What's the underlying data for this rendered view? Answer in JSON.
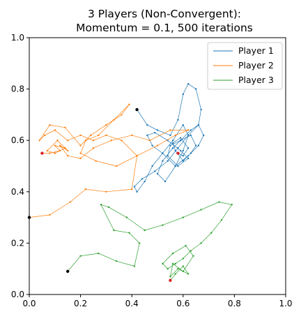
{
  "chart_data": {
    "type": "line",
    "title_line1": "3 Players (Non-Convergent):",
    "title_line2": "Momentum = 0.1, 500 iterations",
    "xlabel": "",
    "ylabel": "",
    "xlim": [
      0,
      1
    ],
    "ylim": [
      0,
      1
    ],
    "x_ticks": [
      "0.0",
      "0.2",
      "0.4",
      "0.6",
      "0.8",
      "1.0"
    ],
    "y_ticks": [
      "0.0",
      "0.2",
      "0.4",
      "0.6",
      "0.8",
      "1.0"
    ],
    "grid": false,
    "legend_position": "upper right",
    "series": [
      {
        "name": "Player 1",
        "color": "#1f77b4",
        "start": [
          0.42,
          0.72
        ],
        "end": [
          0.58,
          0.55
        ],
        "x": [
          0.42,
          0.46,
          0.5,
          0.55,
          0.58,
          0.6,
          0.62,
          0.65,
          0.67,
          0.66,
          0.63,
          0.59,
          0.56,
          0.52,
          0.5,
          0.53,
          0.57,
          0.6,
          0.62,
          0.6,
          0.56,
          0.52,
          0.48,
          0.45,
          0.42,
          0.41,
          0.44,
          0.49,
          0.54,
          0.58,
          0.62,
          0.66,
          0.68,
          0.66,
          0.62,
          0.57,
          0.52,
          0.48,
          0.46,
          0.49,
          0.54,
          0.59,
          0.62,
          0.58,
          0.54,
          0.55,
          0.59,
          0.63,
          0.65,
          0.63,
          0.6,
          0.57,
          0.56,
          0.59,
          0.62,
          0.6,
          0.58
        ],
        "y": [
          0.72,
          0.66,
          0.64,
          0.62,
          0.68,
          0.78,
          0.82,
          0.8,
          0.72,
          0.66,
          0.64,
          0.6,
          0.57,
          0.52,
          0.47,
          0.44,
          0.5,
          0.56,
          0.62,
          0.66,
          0.6,
          0.55,
          0.5,
          0.44,
          0.4,
          0.42,
          0.45,
          0.48,
          0.52,
          0.57,
          0.62,
          0.66,
          0.62,
          0.58,
          0.54,
          0.5,
          0.55,
          0.58,
          0.62,
          0.63,
          0.6,
          0.56,
          0.53,
          0.5,
          0.54,
          0.58,
          0.6,
          0.62,
          0.58,
          0.55,
          0.52,
          0.56,
          0.59,
          0.61,
          0.57,
          0.54,
          0.55
        ]
      },
      {
        "name": "Player 2",
        "color": "#ff7f0e",
        "start": [
          0.0,
          0.3
        ],
        "end": [
          0.05,
          0.55
        ],
        "x": [
          0.0,
          0.08,
          0.16,
          0.22,
          0.3,
          0.4,
          0.42,
          0.36,
          0.3,
          0.25,
          0.2,
          0.15,
          0.1,
          0.06,
          0.04,
          0.08,
          0.14,
          0.2,
          0.24,
          0.3,
          0.36,
          0.39,
          0.33,
          0.27,
          0.22,
          0.2,
          0.26,
          0.34,
          0.42,
          0.5,
          0.57,
          0.62,
          0.55,
          0.47,
          0.4,
          0.32,
          0.25,
          0.2,
          0.15,
          0.12,
          0.15,
          0.11,
          0.07,
          0.1,
          0.14,
          0.1,
          0.12,
          0.08,
          0.05
        ],
        "y": [
          0.3,
          0.31,
          0.36,
          0.41,
          0.4,
          0.41,
          0.54,
          0.6,
          0.62,
          0.6,
          0.62,
          0.6,
          0.64,
          0.62,
          0.6,
          0.66,
          0.65,
          0.58,
          0.62,
          0.66,
          0.7,
          0.74,
          0.68,
          0.62,
          0.6,
          0.55,
          0.52,
          0.5,
          0.54,
          0.58,
          0.62,
          0.64,
          0.64,
          0.6,
          0.62,
          0.6,
          0.57,
          0.53,
          0.54,
          0.58,
          0.56,
          0.6,
          0.56,
          0.55,
          0.57,
          0.58,
          0.56,
          0.55,
          0.55
        ]
      },
      {
        "name": "Player 3",
        "color": "#2ca02c",
        "start": [
          0.15,
          0.09
        ],
        "end": [
          0.55,
          0.055
        ],
        "x": [
          0.15,
          0.2,
          0.27,
          0.34,
          0.41,
          0.43,
          0.39,
          0.33,
          0.28,
          0.31,
          0.38,
          0.45,
          0.52,
          0.6,
          0.67,
          0.74,
          0.79,
          0.75,
          0.71,
          0.67,
          0.63,
          0.6,
          0.57,
          0.54,
          0.52,
          0.56,
          0.61,
          0.64,
          0.6,
          0.56,
          0.55,
          0.58,
          0.62,
          0.6,
          0.57,
          0.55
        ],
        "y": [
          0.09,
          0.15,
          0.16,
          0.13,
          0.11,
          0.2,
          0.24,
          0.25,
          0.35,
          0.34,
          0.3,
          0.25,
          0.27,
          0.3,
          0.33,
          0.36,
          0.35,
          0.29,
          0.24,
          0.2,
          0.17,
          0.14,
          0.12,
          0.1,
          0.12,
          0.16,
          0.19,
          0.15,
          0.09,
          0.12,
          0.07,
          0.1,
          0.08,
          0.11,
          0.08,
          0.055
        ]
      }
    ],
    "start_marker_color": "#000000",
    "end_marker_color": "#d62728"
  }
}
